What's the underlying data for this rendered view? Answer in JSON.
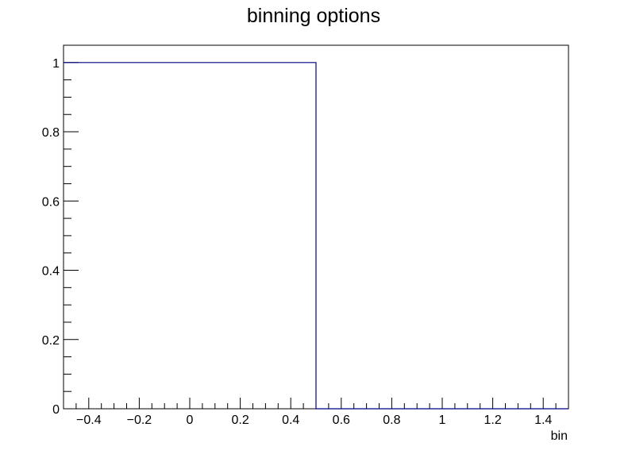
{
  "chart_data": {
    "type": "histogram",
    "title": "binning options",
    "xlabel": "bin",
    "ylabel": "",
    "xlim": [
      -0.5,
      1.5
    ],
    "ylim": [
      0,
      1.05
    ],
    "x_ticks": [
      -0.4,
      -0.2,
      0,
      0.2,
      0.4,
      0.6,
      0.8,
      1,
      1.2,
      1.4
    ],
    "x_tick_labels": [
      "−0.4",
      "−0.2",
      "0",
      "0.2",
      "0.4",
      "0.6",
      "0.8",
      "1",
      "1.2",
      "1.4"
    ],
    "y_ticks": [
      0,
      0.2,
      0.4,
      0.6,
      0.8,
      1
    ],
    "y_tick_labels": [
      "0",
      "0.2",
      "0.4",
      "0.6",
      "0.8",
      "1"
    ],
    "bins": [
      {
        "low": -0.5,
        "high": 0.5,
        "value": 1
      },
      {
        "low": 0.5,
        "high": 1.5,
        "value": 0
      }
    ],
    "line_color": "#000080",
    "grid": false,
    "legend": "none"
  }
}
